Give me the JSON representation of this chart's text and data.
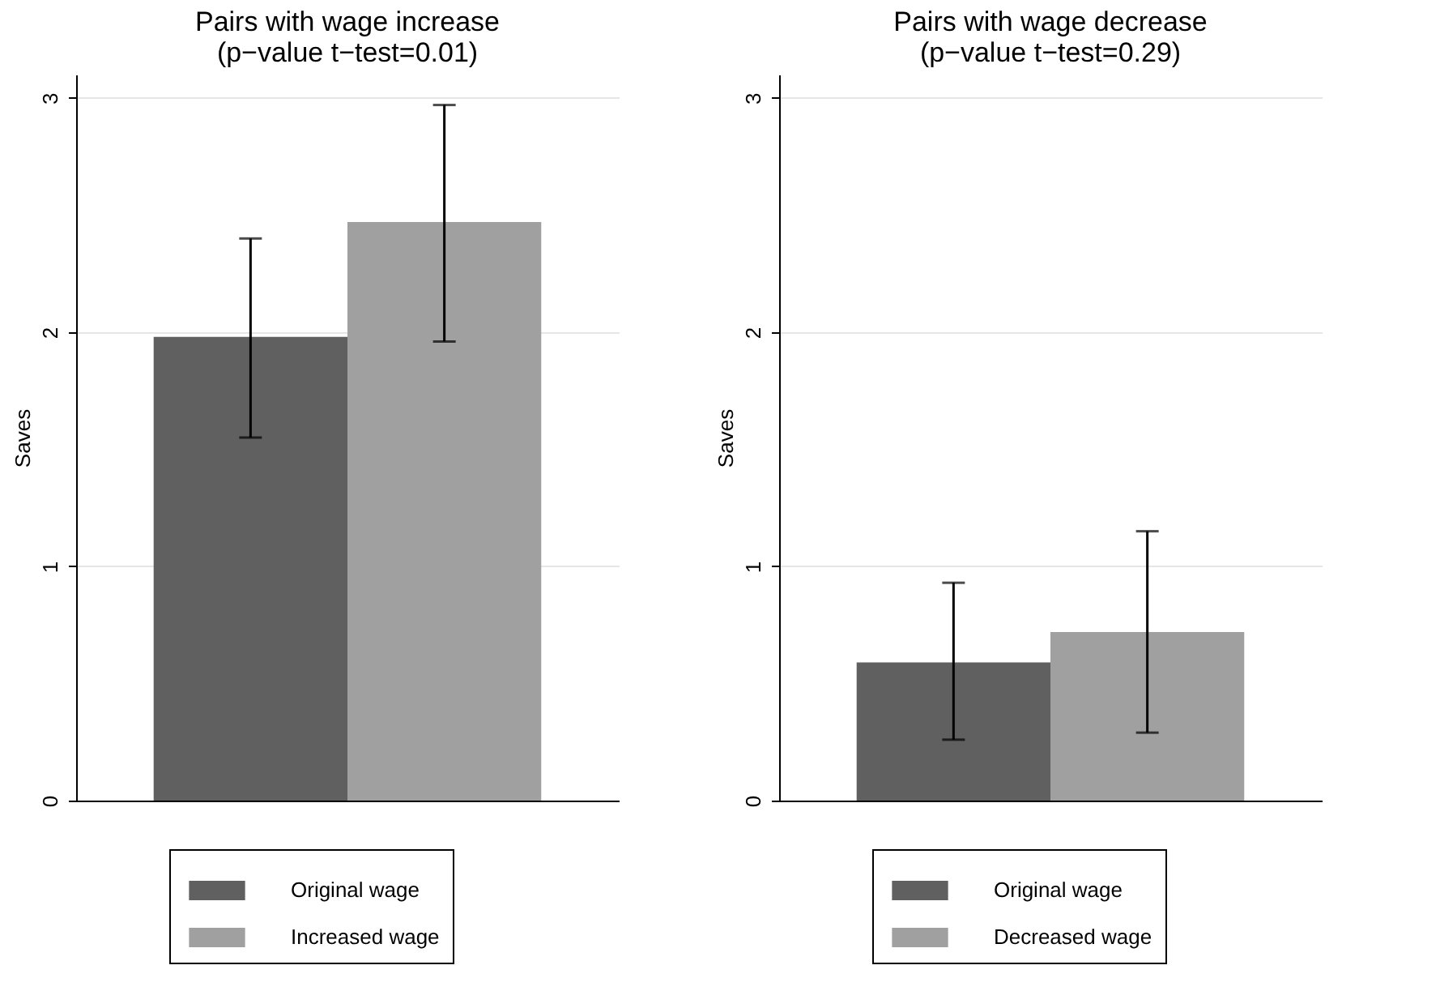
{
  "chart_data": [
    {
      "type": "bar",
      "title": "Pairs with wage increase\n(p−value t−test=0.01)",
      "ylabel": "Saves",
      "categories": [
        null
      ],
      "ylim": [
        0,
        3.1
      ],
      "yticks": [
        0,
        1,
        2,
        3
      ],
      "grid": "y",
      "legend": "bottom",
      "tick_labels": "y",
      "series": [
        {
          "name": "Original wage",
          "color": "#606060",
          "values": [
            1.98
          ],
          "errors": [
            [
              1.55,
              2.4
            ]
          ]
        },
        {
          "name": "Increased wage",
          "color": "#a0a0a0",
          "values": [
            2.47
          ],
          "errors": [
            [
              1.96,
              2.97
            ]
          ]
        }
      ]
    },
    {
      "type": "bar",
      "title": "Pairs with wage decrease\n(p−value t−test=0.29)",
      "ylabel": "Saves",
      "categories": [
        null
      ],
      "ylim": [
        0,
        3.1
      ],
      "yticks": [
        0,
        1,
        2,
        3
      ],
      "grid": "y",
      "legend": "bottom",
      "tick_labels": "y",
      "series": [
        {
          "name": "Original wage",
          "color": "#606060",
          "values": [
            0.59
          ],
          "errors": [
            [
              0.26,
              0.93
            ]
          ]
        },
        {
          "name": "Decreased wage",
          "color": "#a0a0a0",
          "values": [
            0.72
          ],
          "errors": [
            [
              0.29,
              1.15
            ]
          ]
        }
      ]
    }
  ]
}
